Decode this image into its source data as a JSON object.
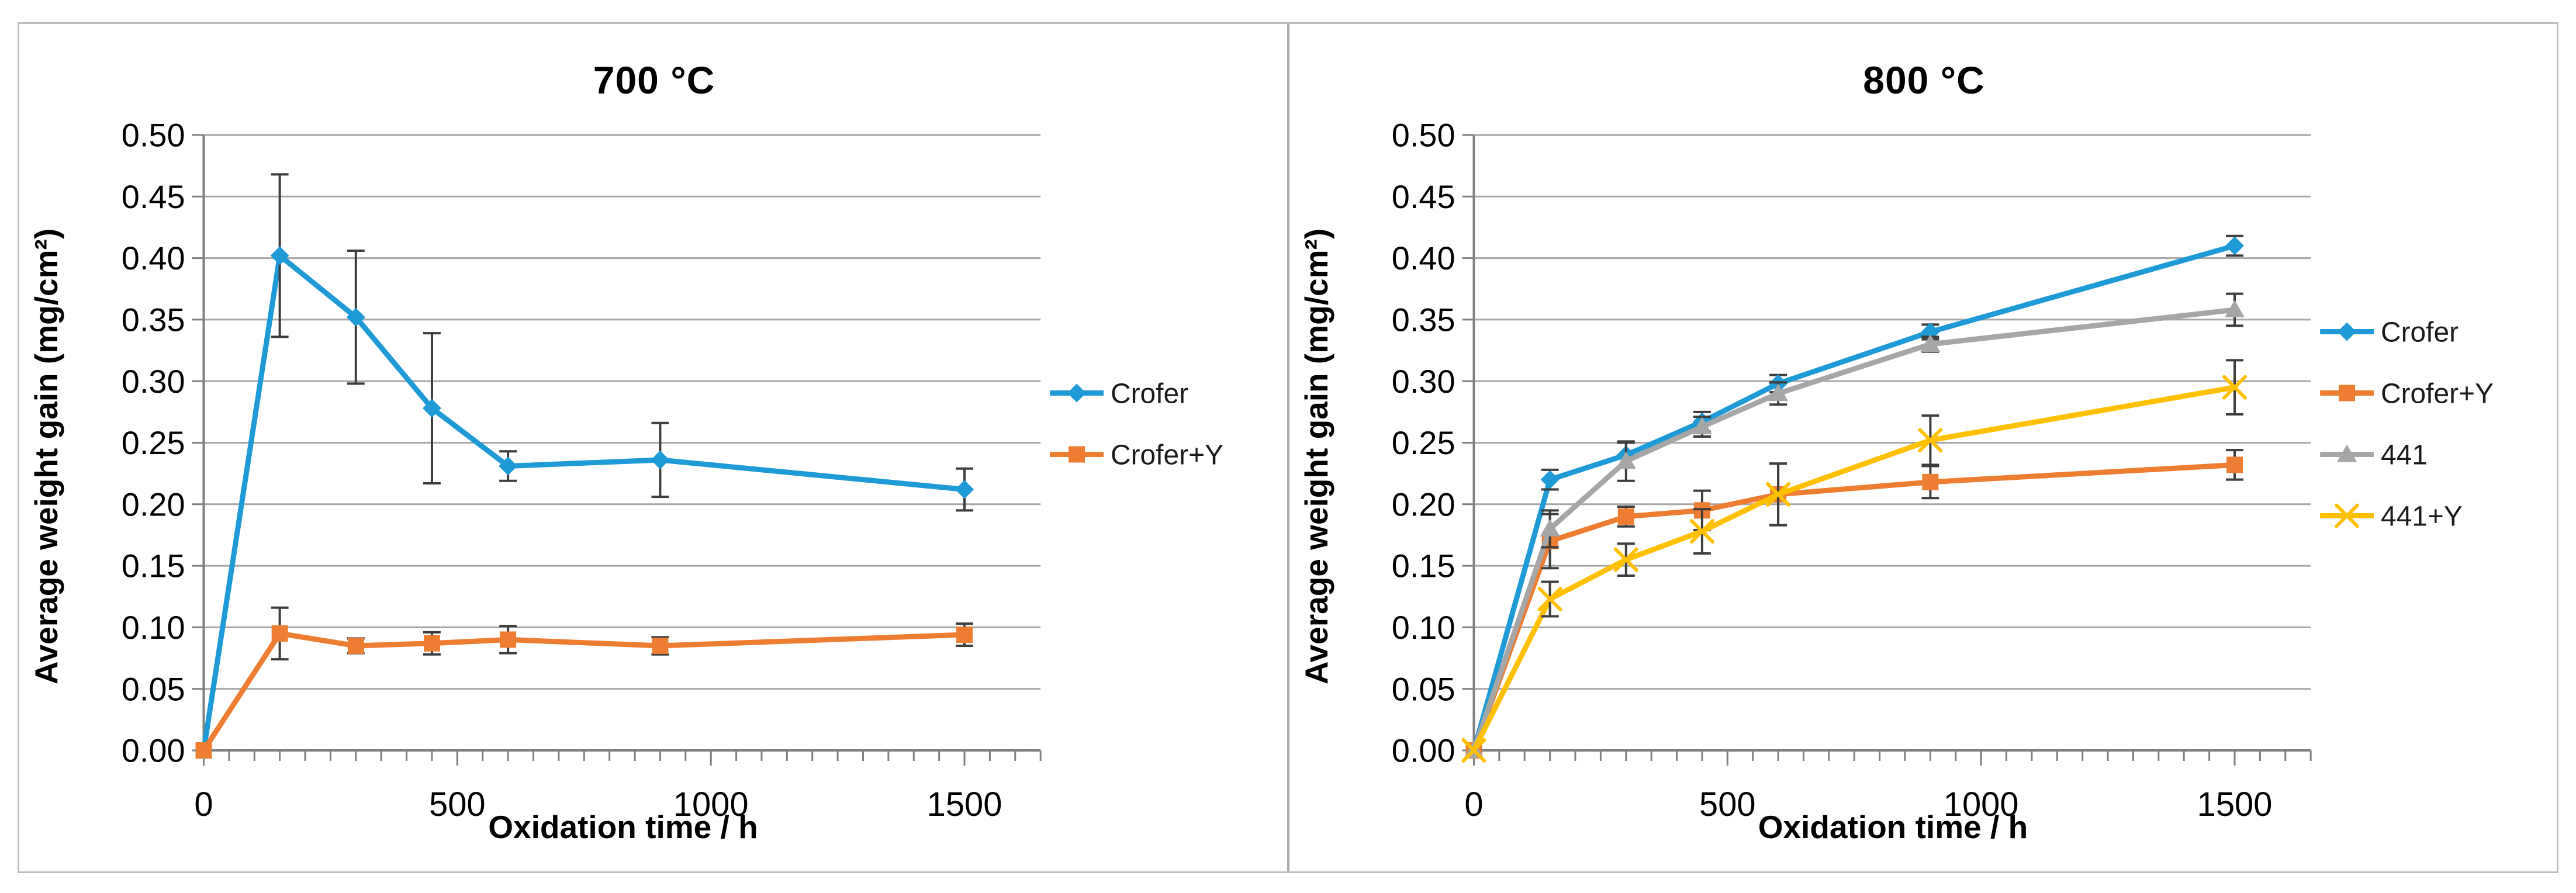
{
  "figure": {
    "background": "#FFFFFF",
    "border_color": "#BDBDBD",
    "divider_color": "#A9A9A9",
    "gridline_color": "#A6A6A6",
    "axis_color": "#7F7F7F",
    "error_bar_color": "#3D3D3D",
    "text_color": "#000000"
  },
  "chart_data": [
    {
      "type": "line",
      "title": "700 °C",
      "xlabel": "Oxidation time / h",
      "ylabel": "Average weight gain (mg/cm²)",
      "xlim": [
        0,
        1650
      ],
      "ylim": [
        0,
        0.5
      ],
      "y_tick_step": 0.05,
      "y_tick_labels": [
        "0.00",
        "0.05",
        "0.10",
        "0.15",
        "0.20",
        "0.25",
        "0.30",
        "0.35",
        "0.40",
        "0.45",
        "0.50"
      ],
      "x_major_ticks": [
        0,
        500,
        1000,
        1500
      ],
      "x_major_tick_labels": [
        "0",
        "500",
        "1000",
        "1500"
      ],
      "x_minor_tick_step": 50,
      "grid": "horizontal",
      "legend_position": "right",
      "x": [
        0,
        150,
        300,
        450,
        600,
        900,
        1500
      ],
      "series": [
        {
          "name": "Crofer",
          "color": "#1E9AD6",
          "marker": "diamond",
          "values": [
            0,
            0.402,
            0.352,
            0.278,
            0.231,
            0.236,
            0.212
          ],
          "errors": [
            0,
            0.066,
            0.054,
            0.061,
            0.012,
            0.03,
            0.017
          ]
        },
        {
          "name": "Crofer+Y",
          "color": "#ED7D31",
          "marker": "square",
          "values": [
            0,
            0.095,
            0.085,
            0.087,
            0.09,
            0.085,
            0.094
          ],
          "errors": [
            0,
            0.021,
            0.006,
            0.009,
            0.011,
            0.007,
            0.009
          ]
        }
      ]
    },
    {
      "type": "line",
      "title": "800 °C",
      "xlabel": "Oxidation time / h",
      "ylabel": "Average weight gain (mg/cm²)",
      "xlim": [
        0,
        1650
      ],
      "ylim": [
        0,
        0.5
      ],
      "y_tick_step": 0.05,
      "y_tick_labels": [
        "0.00",
        "0.05",
        "0.10",
        "0.15",
        "0.20",
        "0.25",
        "0.30",
        "0.35",
        "0.40",
        "0.45",
        "0.50"
      ],
      "x_major_ticks": [
        0,
        500,
        1000,
        1500
      ],
      "x_major_tick_labels": [
        "0",
        "500",
        "1000",
        "1500"
      ],
      "x_minor_tick_step": 50,
      "grid": "horizontal",
      "legend_position": "right",
      "x": [
        0,
        150,
        300,
        450,
        600,
        900,
        1500
      ],
      "series": [
        {
          "name": "Crofer",
          "color": "#1E9AD6",
          "marker": "diamond",
          "values": [
            0,
            0.22,
            0.24,
            0.267,
            0.298,
            0.34,
            0.41
          ],
          "errors": [
            0,
            0.008,
            0.01,
            0.008,
            0.007,
            0.006,
            0.008
          ]
        },
        {
          "name": "Crofer+Y",
          "color": "#ED7D31",
          "marker": "square",
          "values": [
            0,
            0.17,
            0.19,
            0.195,
            0.208,
            0.218,
            0.232
          ],
          "errors": [
            0,
            0.022,
            0.008,
            0.016,
            0.025,
            0.013,
            0.012
          ]
        },
        {
          "name": "441",
          "color": "#A6A6A6",
          "marker": "triangle",
          "values": [
            0,
            0.18,
            0.235,
            0.263,
            0.29,
            0.33,
            0.358
          ],
          "errors": [
            0,
            0.015,
            0.016,
            0.008,
            0.009,
            0.006,
            0.013
          ]
        },
        {
          "name": "441+Y",
          "color": "#FFC000",
          "marker": "x",
          "values": [
            0,
            0.123,
            0.155,
            0.178,
            0.208,
            0.252,
            0.295
          ],
          "errors": [
            0,
            0.014,
            0.013,
            0.018,
            0.025,
            0.02,
            0.022
          ]
        }
      ]
    }
  ]
}
